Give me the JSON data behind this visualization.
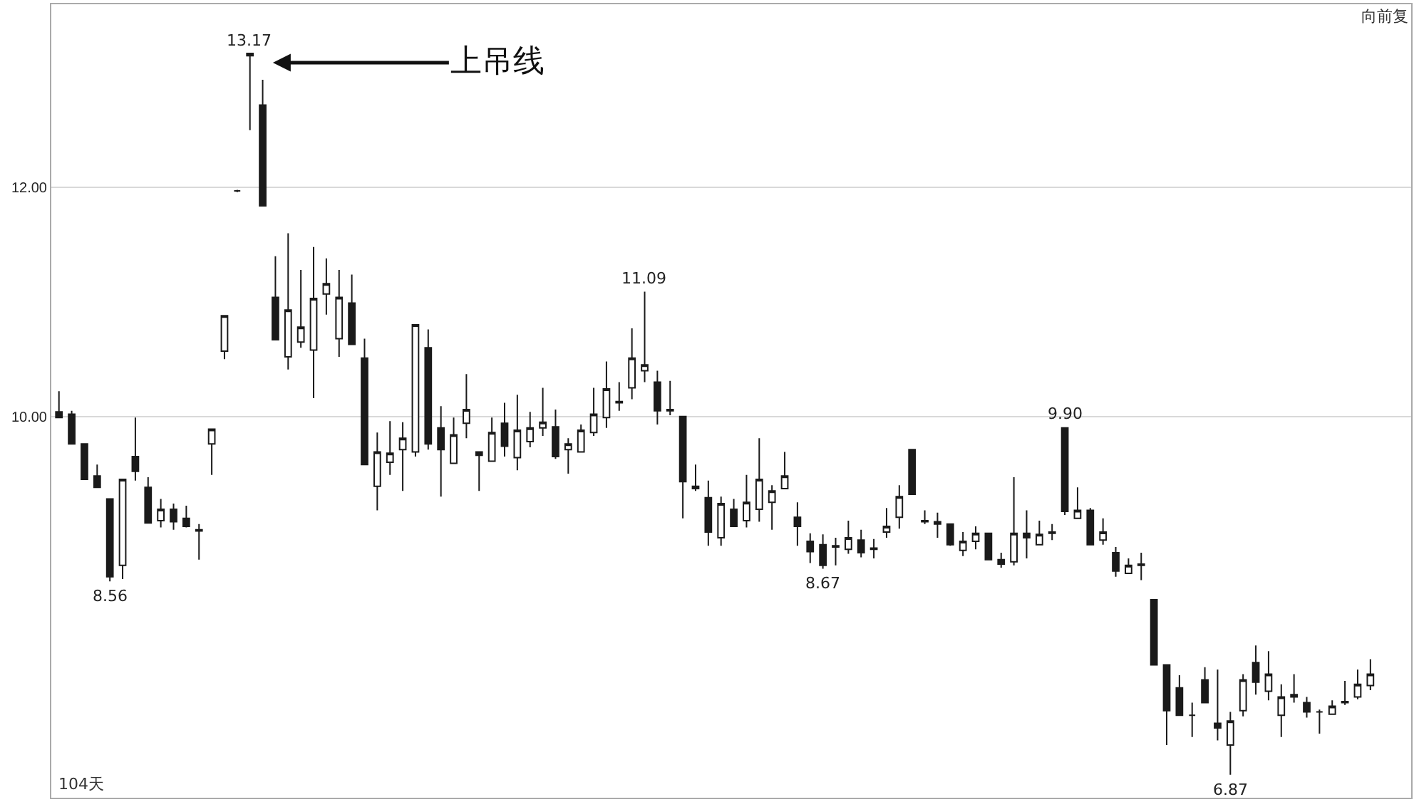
{
  "chart_data": {
    "type": "candlestick",
    "categories": [
      null,
      null,
      null,
      null,
      null,
      null,
      null,
      null,
      null,
      null,
      null,
      null,
      null,
      null,
      null,
      null,
      null,
      null,
      null,
      null,
      null,
      null,
      null,
      null,
      null,
      null,
      null,
      null,
      null,
      null,
      null,
      null,
      null,
      null,
      null,
      null,
      null,
      null,
      null,
      null,
      null,
      null,
      null,
      null,
      null,
      null,
      null,
      null,
      null,
      null,
      null,
      null,
      null,
      null,
      null,
      null,
      null,
      null,
      null,
      null,
      null,
      null,
      null,
      null,
      null,
      null,
      null,
      null,
      null,
      null,
      null,
      null,
      null,
      null,
      null,
      null,
      null,
      null,
      null,
      null,
      null,
      null,
      null,
      null,
      null,
      null,
      null,
      null,
      null,
      null,
      null,
      null,
      null,
      null,
      null,
      null,
      null,
      null,
      null,
      null,
      null,
      null,
      null,
      null
    ],
    "ohlc": [
      [
        10.04,
        10.22,
        9.99,
        9.99
      ],
      [
        10.02,
        10.05,
        9.76,
        9.76
      ],
      [
        9.76,
        9.76,
        9.45,
        9.45
      ],
      [
        9.48,
        9.58,
        9.38,
        9.38
      ],
      [
        9.28,
        9.28,
        8.56,
        8.6
      ],
      [
        8.7,
        9.45,
        8.58,
        9.45
      ],
      [
        9.65,
        9.99,
        9.44,
        9.52
      ],
      [
        9.38,
        9.47,
        9.07,
        9.07
      ],
      [
        9.09,
        9.28,
        9.03,
        9.19
      ],
      [
        9.19,
        9.24,
        9.01,
        9.08
      ],
      [
        9.11,
        9.22,
        9.03,
        9.04
      ],
      [
        9.01,
        9.06,
        8.75,
        9.0
      ],
      [
        9.76,
        9.89,
        9.49,
        9.89
      ],
      [
        10.57,
        10.88,
        10.5,
        10.88
      ],
      [
        11.97,
        11.98,
        11.96,
        11.97
      ],
      [
        13.15,
        13.17,
        12.5,
        13.17
      ],
      [
        12.72,
        12.94,
        11.84,
        11.84
      ],
      [
        11.04,
        11.4,
        10.67,
        10.67
      ],
      [
        10.52,
        11.6,
        10.41,
        10.93
      ],
      [
        10.65,
        11.28,
        10.6,
        10.78
      ],
      [
        10.58,
        11.48,
        10.16,
        11.03
      ],
      [
        11.07,
        11.38,
        10.89,
        11.16
      ],
      [
        10.68,
        11.28,
        10.52,
        11.04
      ],
      [
        10.99,
        11.24,
        10.63,
        10.63
      ],
      [
        10.51,
        10.68,
        9.58,
        9.58
      ],
      [
        9.39,
        9.86,
        9.18,
        9.69
      ],
      [
        9.6,
        9.96,
        9.49,
        9.68
      ],
      [
        9.71,
        9.95,
        9.35,
        9.81
      ],
      [
        9.69,
        10.8,
        9.65,
        10.8
      ],
      [
        10.6,
        10.76,
        9.71,
        9.76
      ],
      [
        9.9,
        10.09,
        9.3,
        9.71
      ],
      [
        9.59,
        9.99,
        9.59,
        9.84
      ],
      [
        9.94,
        10.37,
        9.81,
        10.06
      ],
      [
        9.69,
        9.69,
        9.35,
        9.66
      ],
      [
        9.61,
        9.99,
        9.61,
        9.86
      ],
      [
        9.94,
        10.12,
        9.65,
        9.74
      ],
      [
        9.64,
        10.19,
        9.53,
        9.88
      ],
      [
        9.78,
        10.04,
        9.73,
        9.9
      ],
      [
        9.9,
        10.25,
        9.83,
        9.95
      ],
      [
        9.91,
        10.06,
        9.63,
        9.65
      ],
      [
        9.71,
        9.81,
        9.5,
        9.76
      ],
      [
        9.69,
        9.93,
        9.69,
        9.88
      ],
      [
        9.86,
        10.25,
        9.83,
        10.02
      ],
      [
        9.99,
        10.48,
        9.9,
        10.24
      ],
      [
        10.12,
        10.3,
        10.05,
        10.13
      ],
      [
        10.25,
        10.77,
        10.15,
        10.51
      ],
      [
        10.4,
        11.09,
        10.3,
        10.45
      ],
      [
        10.3,
        10.4,
        9.93,
        10.05
      ],
      [
        10.06,
        10.31,
        10.01,
        10.05
      ],
      [
        10.0,
        10.0,
        9.11,
        9.43
      ],
      [
        9.39,
        9.58,
        9.35,
        9.37
      ],
      [
        9.29,
        9.44,
        8.87,
        8.99
      ],
      [
        8.94,
        9.3,
        8.87,
        9.24
      ],
      [
        9.19,
        9.28,
        9.04,
        9.04
      ],
      [
        9.09,
        9.49,
        9.03,
        9.25
      ],
      [
        9.19,
        9.81,
        9.08,
        9.45
      ],
      [
        9.25,
        9.4,
        9.01,
        9.35
      ],
      [
        9.37,
        9.69,
        9.37,
        9.48
      ],
      [
        9.12,
        9.25,
        8.87,
        9.04
      ],
      [
        8.91,
        8.98,
        8.72,
        8.82
      ],
      [
        8.88,
        8.97,
        8.67,
        8.7
      ],
      [
        8.86,
        8.94,
        8.7,
        8.87
      ],
      [
        8.84,
        9.09,
        8.8,
        8.94
      ],
      [
        8.92,
        9.01,
        8.77,
        8.81
      ],
      [
        8.84,
        8.93,
        8.76,
        8.85
      ],
      [
        8.99,
        9.2,
        8.94,
        9.04
      ],
      [
        9.12,
        9.4,
        9.02,
        9.3
      ],
      [
        9.71,
        9.71,
        9.32,
        9.32
      ],
      [
        9.09,
        9.18,
        9.06,
        9.08
      ],
      [
        9.08,
        9.16,
        8.94,
        9.06
      ],
      [
        9.06,
        9.06,
        8.87,
        8.88
      ],
      [
        8.83,
        8.99,
        8.78,
        8.91
      ],
      [
        8.91,
        9.04,
        8.84,
        8.98
      ],
      [
        8.98,
        8.98,
        8.75,
        8.75
      ],
      [
        8.75,
        8.81,
        8.68,
        8.71
      ],
      [
        8.73,
        9.47,
        8.7,
        8.98
      ],
      [
        8.98,
        9.18,
        8.76,
        8.94
      ],
      [
        8.88,
        9.09,
        8.88,
        8.97
      ],
      [
        8.98,
        9.06,
        8.92,
        8.99
      ],
      [
        9.9,
        9.9,
        9.14,
        9.17
      ],
      [
        9.11,
        9.38,
        9.11,
        9.18
      ],
      [
        9.18,
        9.2,
        8.88,
        8.88
      ],
      [
        8.92,
        9.11,
        8.88,
        8.99
      ],
      [
        8.81,
        8.86,
        8.6,
        8.65
      ],
      [
        8.63,
        8.76,
        8.63,
        8.7
      ],
      [
        8.7,
        8.81,
        8.57,
        8.71
      ],
      [
        8.4,
        8.4,
        7.83,
        7.83
      ],
      [
        7.83,
        7.83,
        7.13,
        7.43
      ],
      [
        7.63,
        7.74,
        7.39,
        7.39
      ],
      [
        7.39,
        7.5,
        7.2,
        7.39
      ],
      [
        7.7,
        7.81,
        7.5,
        7.5
      ],
      [
        7.32,
        7.79,
        7.17,
        7.28
      ],
      [
        7.13,
        7.42,
        6.87,
        7.34
      ],
      [
        7.43,
        7.75,
        7.38,
        7.7
      ],
      [
        7.85,
        8.0,
        7.57,
        7.68
      ],
      [
        7.6,
        7.95,
        7.52,
        7.75
      ],
      [
        7.39,
        7.66,
        7.2,
        7.55
      ],
      [
        7.55,
        7.75,
        7.5,
        7.57
      ],
      [
        7.5,
        7.55,
        7.37,
        7.42
      ],
      [
        7.42,
        7.44,
        7.23,
        7.42
      ],
      [
        7.4,
        7.52,
        7.4,
        7.47
      ],
      [
        7.5,
        7.69,
        7.48,
        7.51
      ],
      [
        7.55,
        7.79,
        7.53,
        7.66
      ],
      [
        7.65,
        7.88,
        7.61,
        7.75
      ]
    ],
    "ylim": [
      6.67,
      13.6
    ],
    "yticks": [
      {
        "value": 10,
        "label": "10.00"
      },
      {
        "value": 12,
        "label": "12.00"
      }
    ],
    "grid": "y",
    "tick_labels": "y",
    "annotations": [
      {
        "text": "13.17",
        "y": 13.17
      },
      {
        "text": "11.09",
        "y": 11.09
      },
      {
        "text": "9.90",
        "y": 9.9
      },
      {
        "text": "8.56",
        "y": 8.56
      },
      {
        "text": "8.67",
        "y": 8.67
      },
      {
        "text": "6.87",
        "y": 6.87
      },
      "上吊线",
      "向前复",
      "104天"
    ]
  }
}
